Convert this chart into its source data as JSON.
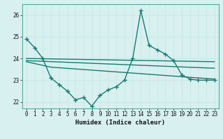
{
  "xlabel": "Humidex (Indice chaleur)",
  "background_color": "#d8f0f0",
  "grid_color": "#c8e8e8",
  "line_color": "#1a7a6e",
  "xlim": [
    -0.5,
    23.5
  ],
  "ylim": [
    21.7,
    26.5
  ],
  "yticks": [
    22,
    23,
    24,
    25,
    26
  ],
  "xticks": [
    0,
    1,
    2,
    3,
    4,
    5,
    6,
    7,
    8,
    9,
    10,
    11,
    12,
    13,
    14,
    15,
    16,
    17,
    18,
    19,
    20,
    21,
    22,
    23
  ],
  "series": [
    {
      "x": [
        0,
        1,
        2,
        3,
        4,
        5,
        6,
        7,
        8,
        9,
        10,
        11,
        12,
        13,
        14,
        15,
        16,
        17,
        18,
        19,
        20,
        21,
        22,
        23
      ],
      "y": [
        24.9,
        24.5,
        24.0,
        23.1,
        22.8,
        22.5,
        22.1,
        22.2,
        21.8,
        22.3,
        22.55,
        22.7,
        23.0,
        24.0,
        26.2,
        24.6,
        24.4,
        24.2,
        23.9,
        23.25,
        23.05,
        23.0,
        23.0,
        23.0
      ],
      "marker": "+",
      "markersize": 4,
      "linewidth": 1.0
    },
    {
      "x": [
        0,
        23
      ],
      "y": [
        24.0,
        23.85
      ],
      "marker": null,
      "linewidth": 1.0
    },
    {
      "x": [
        0,
        23
      ],
      "y": [
        23.9,
        23.55
      ],
      "marker": null,
      "linewidth": 1.0
    },
    {
      "x": [
        0,
        3,
        14,
        23
      ],
      "y": [
        23.85,
        23.6,
        23.3,
        23.05
      ],
      "marker": null,
      "linewidth": 1.0
    }
  ]
}
